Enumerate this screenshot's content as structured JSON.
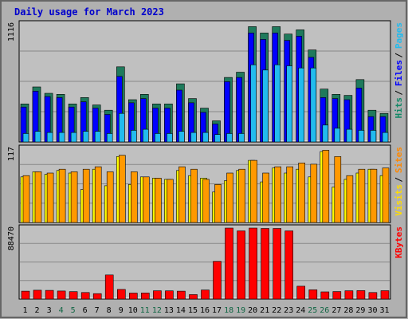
{
  "chart_data": {
    "type": "bar",
    "title": "Daily usage for March 2023",
    "categories": [
      "1",
      "2",
      "3",
      "4",
      "5",
      "6",
      "7",
      "8",
      "9",
      "10",
      "11",
      "12",
      "13",
      "14",
      "15",
      "16",
      "17",
      "18",
      "19",
      "20",
      "21",
      "22",
      "23",
      "24",
      "25",
      "26",
      "27",
      "28",
      "29",
      "30",
      "31"
    ],
    "weekend_days": [
      "4",
      "5",
      "11",
      "12",
      "18",
      "19",
      "25",
      "26"
    ],
    "panels": [
      {
        "id": "pages-files-hits",
        "max_label": "1116",
        "ylim": [
          0,
          1116
        ],
        "legend": [
          {
            "label": "Pages",
            "color": "#22bbee"
          },
          {
            "label": "Files",
            "color": "#0000ff"
          },
          {
            "label": "Hits",
            "color": "#118866"
          }
        ],
        "series": [
          {
            "name": "Hits",
            "color": "#1f7a5c",
            "values": [
              360,
              520,
              460,
              450,
              360,
              420,
              350,
              300,
              710,
              400,
              450,
              360,
              360,
              550,
              410,
              320,
              200,
              610,
              660,
              1090,
              1030,
              1090,
              1020,
              1060,
              870,
              500,
              450,
              440,
              590,
              300,
              270
            ]
          },
          {
            "name": "Files",
            "color": "#0000ff",
            "values": [
              330,
              480,
              430,
              420,
              330,
              380,
              320,
              260,
              620,
              370,
              410,
              320,
              320,
              490,
              370,
              280,
              170,
              570,
              610,
              1030,
              970,
              1030,
              960,
              1000,
              800,
              420,
              410,
              400,
              510,
              240,
              240
            ]
          },
          {
            "name": "Pages",
            "color": "#22bbee",
            "values": [
              80,
              100,
              90,
              90,
              90,
              100,
              100,
              80,
              270,
              110,
              120,
              80,
              80,
              100,
              90,
              90,
              70,
              80,
              80,
              730,
              680,
              730,
              720,
              700,
              700,
              160,
              130,
              120,
              110,
              110,
              90
            ]
          }
        ]
      },
      {
        "id": "sites-visits",
        "max_label": "117",
        "ylim": [
          0,
          117
        ],
        "legend": [
          {
            "label": "Sites",
            "color": "#ff8800"
          },
          {
            "label": "Visits",
            "color": "#ffdd00"
          }
        ],
        "series": [
          {
            "name": "Visits",
            "color": "#ffff00",
            "values": [
              72,
              80,
              76,
              82,
              78,
              52,
              84,
              58,
              104,
              60,
              72,
              70,
              68,
              82,
              74,
              70,
              48,
              66,
              82,
              98,
              64,
              86,
              78,
              84,
              72,
              112,
              56,
              68,
              78,
              84,
              74
            ]
          },
          {
            "name": "Sites",
            "color": "#ff9900",
            "values": [
              74,
              80,
              78,
              84,
              80,
              84,
              88,
              80,
              106,
              80,
              72,
              70,
              68,
              88,
              84,
              68,
              60,
              78,
              84,
              98,
              78,
              88,
              88,
              94,
              92,
              114,
              104,
              74,
              84,
              84,
              86
            ]
          }
        ]
      },
      {
        "id": "kbytes",
        "max_label": "88470",
        "ylim": [
          0,
          88470
        ],
        "legend": [
          {
            "label": "KBytes",
            "color": "#ff0000"
          }
        ],
        "series": [
          {
            "name": "KBytes",
            "color": "#ff0000",
            "values": [
              9800,
              11000,
              10800,
              10000,
              9200,
              8200,
              6800,
              30000,
              12000,
              7500,
              7600,
              10300,
              10200,
              9800,
              5600,
              11300,
              47000,
              88470,
              85000,
              88470,
              88000,
              88000,
              85000,
              16000,
              11500,
              8900,
              9300,
              10300,
              10500,
              8200,
              10400
            ]
          }
        ]
      }
    ]
  }
}
